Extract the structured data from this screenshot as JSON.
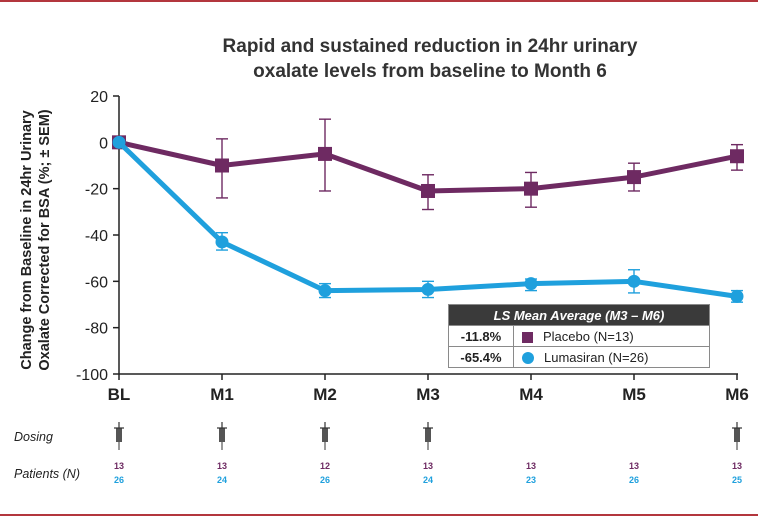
{
  "chart_data": {
    "type": "line",
    "title": "Rapid and sustained reduction in 24hr urinary oxalate levels from baseline to Month 6",
    "title_lines": [
      "Rapid and sustained reduction in 24hr urinary",
      "oxalate levels from baseline to Month 6"
    ],
    "ylabel_lines": [
      "Change from Baseline in 24hr Urinary",
      "Oxalate Corrected for BSA (%; ± SEM)"
    ],
    "xlabel": "",
    "categories": [
      "BL",
      "M1",
      "M2",
      "M3",
      "M4",
      "M5",
      "M6"
    ],
    "ylim": [
      -100,
      20
    ],
    "yticks": [
      20,
      0,
      -20,
      -40,
      -60,
      -80,
      -100
    ],
    "grid": false,
    "series": [
      {
        "name": "Placebo (N=13)",
        "color": "#6e2a62",
        "marker": "square",
        "values": [
          0,
          -10,
          -5,
          -21,
          -20,
          -15,
          -6
        ],
        "err_low": [
          0,
          -24,
          -21,
          -29,
          -28,
          -21,
          -12
        ],
        "err_high": [
          0,
          1.5,
          10,
          -14,
          -13,
          -9,
          -1
        ]
      },
      {
        "name": "Lumasiran (N=26)",
        "color": "#1fa0dd",
        "marker": "circle",
        "values": [
          0,
          -43,
          -64,
          -63.5,
          -61,
          -60,
          -66.5
        ],
        "err_low": [
          0,
          -46.5,
          -67,
          -67,
          -64,
          -65,
          -69
        ],
        "err_high": [
          0,
          -39,
          -61,
          -60,
          -59,
          -55,
          -64
        ]
      }
    ]
  },
  "legend": {
    "header": "LS Mean Average (M3 – M6)",
    "rows": [
      {
        "value": "-11.8%",
        "label": "Placebo (N=13)"
      },
      {
        "value": "-65.4%",
        "label": "Lumasiran (N=26)"
      }
    ]
  },
  "dosing": {
    "label": "Dosing",
    "at": [
      "BL",
      "M1",
      "M2",
      "M3",
      "M6"
    ],
    "icon": "syringe-icon"
  },
  "patients": {
    "label": "Patients (N)",
    "placebo": [
      "13",
      "13",
      "12",
      "13",
      "13",
      "13",
      "13"
    ],
    "lumasiran": [
      "26",
      "24",
      "26",
      "24",
      "23",
      "26",
      "25"
    ]
  },
  "colors": {
    "placebo": "#6e2a62",
    "lumasiran": "#1fa0dd",
    "rule": "#b3363d"
  }
}
